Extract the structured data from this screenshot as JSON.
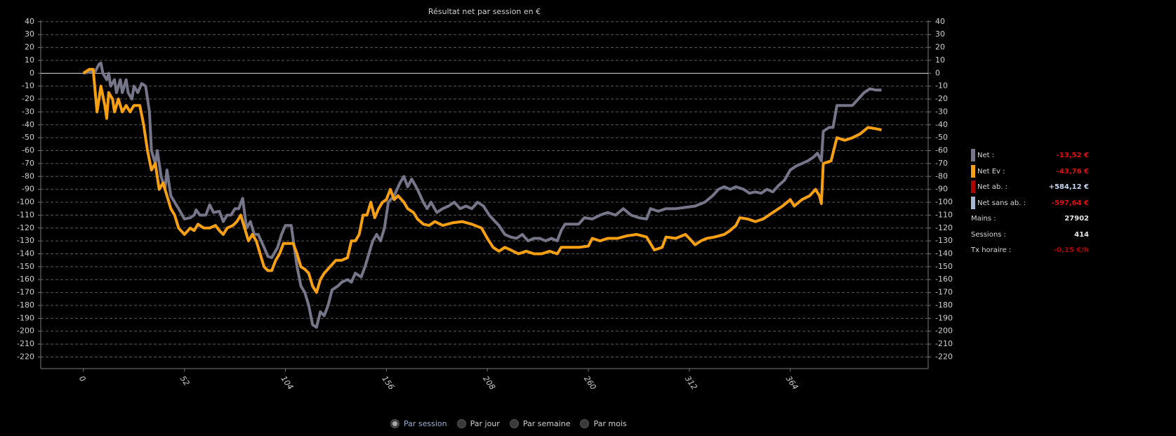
{
  "chart_data": {
    "type": "line",
    "title": "Résultat net par session en €",
    "xlim": [
      -22,
      435
    ],
    "xticks": [
      0,
      52,
      104,
      156,
      208,
      260,
      312,
      364
    ],
    "ylim": [
      -229,
      41
    ],
    "yticks": [
      40,
      30,
      20,
      10,
      0,
      -10,
      -20,
      -30,
      -40,
      -50,
      -60,
      -70,
      -80,
      -90,
      -100,
      -110,
      -120,
      -130,
      -140,
      -150,
      -160,
      -170,
      -180,
      -190,
      -200,
      -210,
      -220
    ],
    "grid": true,
    "series": [
      {
        "color": "#76768a",
        "x": [
          0,
          3,
          6,
          8,
          9,
          10,
          12,
          13,
          14,
          16,
          17,
          19,
          20,
          22,
          23,
          25,
          26,
          28,
          30,
          32,
          34,
          35,
          37,
          38,
          40,
          42,
          43,
          45,
          47,
          49,
          52,
          55,
          57,
          58,
          60,
          63,
          65,
          67,
          70,
          72,
          74,
          76,
          78,
          80,
          82,
          84,
          86,
          88,
          90,
          93,
          95,
          97,
          100,
          102,
          104,
          107,
          110,
          112,
          114,
          116,
          118,
          120,
          122,
          124,
          126,
          128,
          131,
          133,
          136,
          138,
          140,
          143,
          145,
          147,
          149,
          151,
          153,
          155,
          157,
          160,
          163,
          165,
          167,
          169,
          172,
          175,
          177,
          179,
          182,
          185,
          188,
          191,
          194,
          197,
          200,
          203,
          206,
          209,
          212,
          214,
          217,
          220,
          223,
          226,
          229,
          232,
          235,
          238,
          241,
          244,
          246,
          248,
          252,
          255,
          258,
          262,
          266,
          270,
          274,
          278,
          282,
          286,
          290,
          292,
          296,
          300,
          305,
          310,
          315,
          320,
          324,
          327,
          330,
          333,
          336,
          340,
          343,
          346,
          349,
          352,
          355,
          358,
          361,
          364,
          367,
          370,
          373,
          376,
          378,
          380,
          381,
          384,
          386,
          388,
          392,
          396,
          399,
          402,
          405,
          408,
          411
        ],
        "values": [
          0,
          1,
          1,
          7,
          8,
          0,
          -5,
          0,
          -10,
          -5,
          -15,
          -5,
          -15,
          -5,
          -15,
          -20,
          -10,
          -15,
          -8,
          -10,
          -30,
          -60,
          -70,
          -60,
          -80,
          -90,
          -75,
          -95,
          -100,
          -105,
          -113,
          -112,
          -110,
          -106,
          -110,
          -110,
          -102,
          -108,
          -107,
          -115,
          -110,
          -110,
          -105,
          -105,
          -97,
          -120,
          -115,
          -125,
          -125,
          -135,
          -142,
          -143,
          -135,
          -125,
          -118,
          -118,
          -150,
          -165,
          -170,
          -180,
          -195,
          -197,
          -185,
          -188,
          -180,
          -168,
          -165,
          -162,
          -160,
          -162,
          -155,
          -158,
          -150,
          -140,
          -130,
          -125,
          -130,
          -120,
          -100,
          -95,
          -85,
          -80,
          -88,
          -82,
          -90,
          -100,
          -105,
          -100,
          -108,
          -105,
          -103,
          -100,
          -105,
          -103,
          -105,
          -100,
          -103,
          -110,
          -115,
          -118,
          -125,
          -127,
          -128,
          -125,
          -130,
          -128,
          -128,
          -130,
          -128,
          -130,
          -122,
          -117,
          -117,
          -117,
          -112,
          -113,
          -110,
          -108,
          -110,
          -105,
          -110,
          -112,
          -113,
          -105,
          -107,
          -105,
          -105,
          -104,
          -103,
          -100,
          -95,
          -90,
          -88,
          -90,
          -88,
          -90,
          -93,
          -92,
          -93,
          -90,
          -92,
          -87,
          -83,
          -75,
          -72,
          -70,
          -68,
          -65,
          -62,
          -68,
          -45,
          -42,
          -42,
          -25,
          -25,
          -25,
          -20,
          -15,
          -12,
          -13,
          -13
        ]
      },
      {
        "color": "#f7a014",
        "x": [
          0,
          3,
          5,
          7,
          8,
          9,
          11,
          12,
          13,
          15,
          16,
          18,
          20,
          22,
          24,
          26,
          29,
          31,
          33,
          35,
          37,
          39,
          41,
          43,
          45,
          47,
          49,
          52,
          55,
          57,
          59,
          62,
          65,
          68,
          70,
          72,
          74,
          77,
          79,
          81,
          83,
          85,
          87,
          89,
          91,
          93,
          95,
          97,
          99,
          101,
          103,
          106,
          108,
          110,
          112,
          114,
          116,
          118,
          120,
          122,
          124,
          127,
          130,
          133,
          136,
          138,
          140,
          142,
          144,
          146,
          148,
          150,
          152,
          154,
          156,
          158,
          160,
          162,
          165,
          167,
          170,
          172,
          175,
          178,
          181,
          185,
          190,
          195,
          200,
          205,
          208,
          211,
          214,
          217,
          220,
          224,
          228,
          232,
          236,
          240,
          244,
          246,
          250,
          255,
          260,
          262,
          266,
          270,
          275,
          280,
          285,
          290,
          294,
          298,
          300,
          305,
          310,
          312,
          315,
          318,
          321,
          325,
          330,
          333,
          336,
          338,
          342,
          346,
          350,
          355,
          360,
          364,
          366,
          370,
          374,
          377,
          379,
          380,
          381,
          385,
          388,
          392,
          396,
          400,
          404,
          408,
          411
        ],
        "values": [
          0,
          3,
          3,
          -30,
          -20,
          -10,
          -25,
          -35,
          -15,
          -20,
          -30,
          -20,
          -30,
          -25,
          -30,
          -25,
          -25,
          -40,
          -60,
          -75,
          -70,
          -90,
          -85,
          -95,
          -105,
          -110,
          -120,
          -125,
          -120,
          -122,
          -117,
          -120,
          -120,
          -118,
          -122,
          -125,
          -120,
          -118,
          -115,
          -110,
          -120,
          -130,
          -125,
          -130,
          -140,
          -150,
          -153,
          -153,
          -145,
          -140,
          -132,
          -132,
          -132,
          -140,
          -150,
          -152,
          -155,
          -165,
          -170,
          -160,
          -155,
          -150,
          -145,
          -145,
          -143,
          -130,
          -130,
          -125,
          -110,
          -110,
          -100,
          -112,
          -105,
          -100,
          -98,
          -90,
          -98,
          -95,
          -100,
          -105,
          -108,
          -113,
          -117,
          -118,
          -115,
          -118,
          -116,
          -115,
          -117,
          -120,
          -128,
          -135,
          -138,
          -135,
          -137,
          -140,
          -138,
          -140,
          -140,
          -138,
          -140,
          -135,
          -135,
          -135,
          -134,
          -128,
          -130,
          -128,
          -128,
          -126,
          -125,
          -127,
          -137,
          -135,
          -127,
          -128,
          -125,
          -128,
          -133,
          -130,
          -128,
          -127,
          -125,
          -122,
          -118,
          -112,
          -113,
          -115,
          -113,
          -108,
          -103,
          -98,
          -103,
          -98,
          -95,
          -90,
          -95,
          -101,
          -70,
          -68,
          -50,
          -52,
          -50,
          -47,
          -42,
          -43,
          -44
        ]
      }
    ]
  },
  "stats": [
    {
      "label": "Net :",
      "value": "-13,52 €",
      "color": "#76768a",
      "value_color": "#e01010"
    },
    {
      "label": "Net Ev :",
      "value": "-43,76 €",
      "color": "#f7a014",
      "value_color": "#e01010"
    },
    {
      "label": "Net ab. :",
      "value": "+584,12 €",
      "color": "#b00000",
      "value_color": "#c8d8f0"
    },
    {
      "label": "Net sans ab. :",
      "value": "-597,64 €",
      "color": "#a8b8d0",
      "value_color": "#e01010"
    },
    {
      "label": "Mains :",
      "value": "27902",
      "value_color": "#e8e8e8"
    },
    {
      "label": "Sessions :",
      "value": "414",
      "value_color": "#e8e8e8"
    },
    {
      "label": "Tx horaire :",
      "value": "-0,15 €/h",
      "value_color": "#b00000"
    }
  ],
  "modes": {
    "options": [
      "Par session",
      "Par jour",
      "Par semaine",
      "Par mois"
    ],
    "selected": 0
  }
}
